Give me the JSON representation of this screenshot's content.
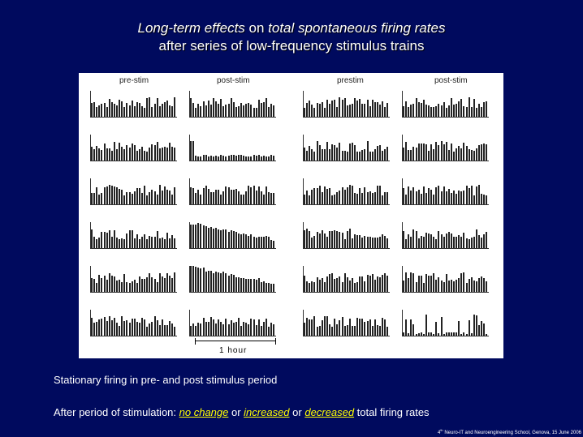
{
  "title": {
    "line1_em1": "Long-term effects",
    "line1_mid": " on ",
    "line1_em2": "total spontaneous firing rates",
    "line2": "after series of low-frequency stimulus trains"
  },
  "figure": {
    "col_labels": [
      "pre-stim",
      "post-stim",
      "prestim",
      "post-stim"
    ],
    "scale_label": "1 hour"
  },
  "text": {
    "line1": "Stationary firing in pre- and post stimulus period",
    "line2_prefix": "After period of stimulation: ",
    "no_change": "no change",
    "or1": " or ",
    "increased": "increased",
    "or2": " or ",
    "decreased": "decreased",
    "line2_suffix": " total firing rates"
  },
  "footer": {
    "sup": "th",
    "num": "4",
    "text": " Neuro-IT and Neuroengineering School, Genova, 15 June 2006"
  }
}
